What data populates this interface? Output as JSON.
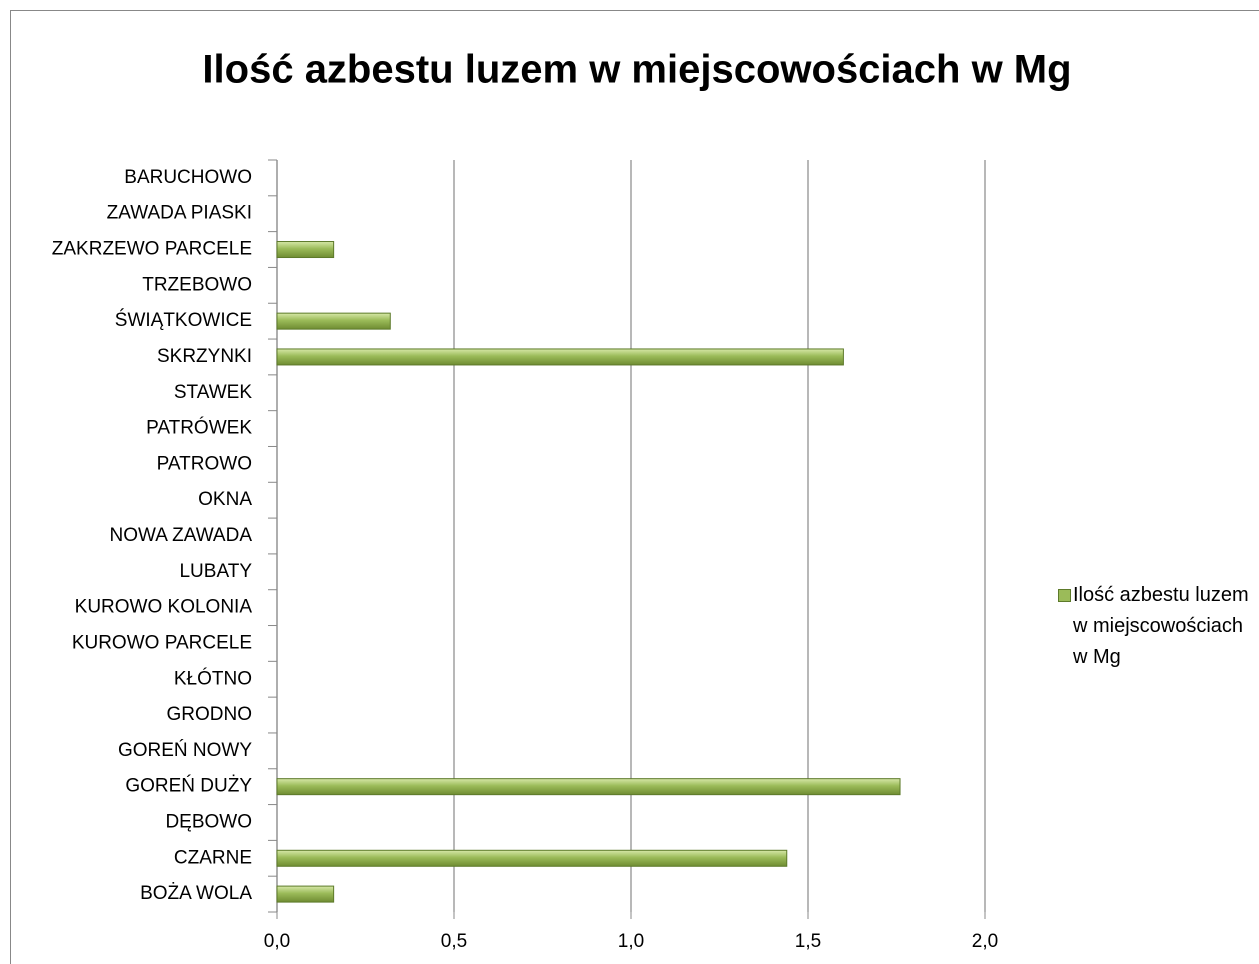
{
  "chart_data": {
    "type": "hbar",
    "title": "Ilość azbestu luzem w miejscowościach w Mg",
    "categories": [
      "BOŻA WOLA",
      "CZARNE",
      "DĘBOWO",
      "GOREŃ DUŻY",
      "GOREŃ NOWY",
      "GRODNO",
      "KŁÓTNO",
      "KUROWO PARCELE",
      "KUROWO KOLONIA",
      "LUBATY",
      "NOWA ZAWADA ",
      "OKNA",
      "PATROWO",
      "PATRÓWEK",
      "STAWEK",
      "SKRZYNKI",
      "ŚWIĄTKOWICE",
      "TRZEBOWO",
      "ZAKRZEWO PARCELE",
      "ZAWADA PIASKI",
      "BARUCHOWO"
    ],
    "series": [
      {
        "name": "Ilość azbestu luzem w miejscowościach w Mg",
        "color": "#9bbb59",
        "values": [
          0.16,
          1.44,
          0,
          1.76,
          0,
          0,
          0,
          0,
          0,
          0,
          0,
          0,
          0,
          0,
          0,
          1.6,
          0.32,
          0,
          0.16,
          0,
          0
        ]
      }
    ],
    "xlim": [
      0,
      2
    ],
    "xticks": [
      {
        "value": 0,
        "label": "0,0"
      },
      {
        "value": 0.5,
        "label": "0,5"
      },
      {
        "value": 1,
        "label": "1,0"
      },
      {
        "value": 1.5,
        "label": "1,5"
      },
      {
        "value": 2,
        "label": "2,0"
      }
    ],
    "grid": true,
    "legend": "right"
  }
}
